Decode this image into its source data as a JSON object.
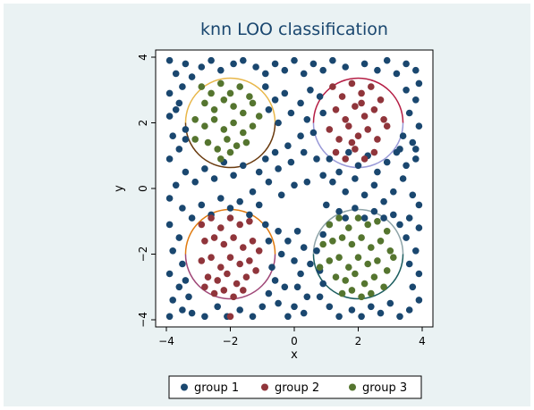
{
  "chart_data": {
    "type": "scatter",
    "title": "knn LOO classification",
    "xlabel": "x",
    "ylabel": "y",
    "xlim": [
      -4,
      4
    ],
    "ylim": [
      -4,
      4
    ],
    "xticks": [
      -4,
      -2,
      0,
      2,
      4
    ],
    "yticks": [
      -4,
      -2,
      0,
      2,
      4
    ],
    "x_tick_labels": [
      "−4",
      "−2",
      "0",
      "2",
      "4"
    ],
    "y_tick_labels": [
      "−4",
      "−2",
      "0",
      "2",
      "4"
    ],
    "grid": false,
    "legend_position": "bottom",
    "series": [
      {
        "name": "group 1",
        "color": "#1a476f",
        "points": [
          [
            -3.9,
            3.9
          ],
          [
            -3.7,
            3.5
          ],
          [
            -3.4,
            3.8
          ],
          [
            -3.2,
            3.4
          ],
          [
            -2.9,
            3.7
          ],
          [
            -2.6,
            3.9
          ],
          [
            -2.3,
            3.6
          ],
          [
            -1.9,
            3.8
          ],
          [
            -1.6,
            3.9
          ],
          [
            -1.2,
            3.7
          ],
          [
            -0.9,
            3.5
          ],
          [
            -0.6,
            3.8
          ],
          [
            -0.3,
            3.6
          ],
          [
            0.0,
            3.9
          ],
          [
            0.3,
            3.5
          ],
          [
            0.6,
            3.8
          ],
          [
            0.9,
            3.6
          ],
          [
            1.2,
            3.9
          ],
          [
            1.6,
            3.7
          ],
          [
            2.2,
            3.8
          ],
          [
            2.6,
            3.6
          ],
          [
            2.9,
            3.9
          ],
          [
            3.2,
            3.5
          ],
          [
            3.5,
            3.8
          ],
          [
            3.8,
            3.6
          ],
          [
            -3.9,
            2.9
          ],
          [
            -3.7,
            2.4
          ],
          [
            -3.5,
            3.1
          ],
          [
            -3.9,
            2.2
          ],
          [
            -3.6,
            2.6
          ],
          [
            -3.8,
            1.6
          ],
          [
            -3.4,
            1.8
          ],
          [
            -3.6,
            1.2
          ],
          [
            -3.9,
            0.9
          ],
          [
            -3.4,
            1.5
          ],
          [
            -0.9,
            3.1
          ],
          [
            -0.6,
            2.7
          ],
          [
            -0.3,
            2.9
          ],
          [
            -0.1,
            2.3
          ],
          [
            0.2,
            2.6
          ],
          [
            0.5,
            3.0
          ],
          [
            0.4,
            2.1
          ],
          [
            -0.5,
            2.0
          ],
          [
            -0.8,
            2.4
          ],
          [
            0.8,
            2.8
          ],
          [
            0.9,
            2.3
          ],
          [
            0.6,
            1.7
          ],
          [
            0.2,
            1.6
          ],
          [
            -0.2,
            1.3
          ],
          [
            -0.6,
            1.1
          ],
          [
            -0.9,
            0.9
          ],
          [
            -0.5,
            0.6
          ],
          [
            -0.1,
            0.8
          ],
          [
            0.3,
            1.1
          ],
          [
            0.7,
            0.9
          ],
          [
            0.9,
            0.4
          ],
          [
            0.4,
            0.2
          ],
          [
            0.0,
            0.1
          ],
          [
            -0.4,
            -0.2
          ],
          [
            -0.8,
            0.2
          ],
          [
            -1.1,
            0.5
          ],
          [
            -1.3,
            -0.1
          ],
          [
            -1.6,
            0.7
          ],
          [
            -1.9,
            0.4
          ],
          [
            -2.2,
            0.8
          ],
          [
            -2.5,
            0.3
          ],
          [
            -2.8,
            0.6
          ],
          [
            -3.1,
            0.2
          ],
          [
            -3.4,
            0.5
          ],
          [
            -3.7,
            0.1
          ],
          [
            -3.9,
            -0.3
          ],
          [
            -3.5,
            -0.6
          ],
          [
            -3.2,
            -0.9
          ],
          [
            -2.9,
            -0.5
          ],
          [
            -2.6,
            -0.8
          ],
          [
            -2.3,
            -0.3
          ],
          [
            -2.0,
            -0.6
          ],
          [
            -1.7,
            -0.4
          ],
          [
            -1.4,
            -0.8
          ],
          [
            -1.1,
            -0.5
          ],
          [
            1.1,
            0.9
          ],
          [
            1.4,
            0.5
          ],
          [
            1.7,
            1.1
          ],
          [
            2.0,
            0.7
          ],
          [
            2.3,
            1.0
          ],
          [
            2.6,
            0.5
          ],
          [
            2.9,
            0.8
          ],
          [
            3.2,
            1.1
          ],
          [
            3.5,
            0.7
          ],
          [
            3.8,
            0.9
          ],
          [
            1.2,
            0.2
          ],
          [
            1.6,
            -0.1
          ],
          [
            1.9,
            0.3
          ],
          [
            2.2,
            -0.2
          ],
          [
            2.5,
            0.1
          ],
          [
            2.8,
            -0.4
          ],
          [
            3.1,
            -0.1
          ],
          [
            3.4,
            0.3
          ],
          [
            3.7,
            -0.2
          ],
          [
            3.9,
            -0.5
          ],
          [
            1.0,
            -0.5
          ],
          [
            1.4,
            -0.7
          ],
          [
            3.6,
            2.3
          ],
          [
            3.9,
            1.9
          ],
          [
            3.7,
            1.4
          ],
          [
            3.4,
            1.6
          ],
          [
            3.8,
            2.7
          ],
          [
            3.5,
            3.0
          ],
          [
            3.9,
            3.2
          ],
          [
            3.3,
            1.2
          ],
          [
            3.8,
            1.2
          ],
          [
            -3.9,
            -1.1
          ],
          [
            -3.6,
            -1.5
          ],
          [
            -3.8,
            -1.9
          ],
          [
            -3.5,
            -2.3
          ],
          [
            -3.9,
            -2.6
          ],
          [
            -3.6,
            -3.0
          ],
          [
            -3.8,
            -3.4
          ],
          [
            -3.5,
            -3.7
          ],
          [
            -3.9,
            -3.9
          ],
          [
            -3.3,
            -3.3
          ],
          [
            -3.2,
            -3.8
          ],
          [
            -3.4,
            -2.8
          ],
          [
            -2.8,
            -3.9
          ],
          [
            -2.4,
            -3.6
          ],
          [
            -2.1,
            -3.9
          ],
          [
            -1.7,
            -3.7
          ],
          [
            -1.3,
            -3.9
          ],
          [
            -1.0,
            -3.6
          ],
          [
            -0.8,
            -3.2
          ],
          [
            -0.5,
            -3.5
          ],
          [
            -0.6,
            -2.8
          ],
          [
            -0.3,
            -3.0
          ],
          [
            -0.7,
            -2.4
          ],
          [
            -0.4,
            -2.0
          ],
          [
            -0.8,
            -1.6
          ],
          [
            -0.5,
            -1.3
          ],
          [
            -0.9,
            -1.1
          ],
          [
            -0.2,
            -1.6
          ],
          [
            0.1,
            -1.3
          ],
          [
            0.3,
            -1.8
          ],
          [
            0.0,
            -2.2
          ],
          [
            0.2,
            -2.6
          ],
          [
            0.5,
            -2.3
          ],
          [
            0.1,
            -3.0
          ],
          [
            0.4,
            -3.3
          ],
          [
            0.0,
            -3.6
          ],
          [
            0.3,
            -3.8
          ],
          [
            -0.2,
            -3.9
          ],
          [
            0.8,
            -3.3
          ],
          [
            1.1,
            -3.6
          ],
          [
            1.4,
            -3.9
          ],
          [
            1.8,
            -3.7
          ],
          [
            2.1,
            -3.9
          ],
          [
            2.4,
            -3.6
          ],
          [
            2.7,
            -3.8
          ],
          [
            3.0,
            -3.5
          ],
          [
            3.3,
            -3.9
          ],
          [
            3.6,
            -3.7
          ],
          [
            3.9,
            -3.4
          ],
          [
            3.7,
            -3.0
          ],
          [
            3.9,
            -2.6
          ],
          [
            3.6,
            -2.3
          ],
          [
            3.8,
            -1.9
          ],
          [
            3.5,
            -1.5
          ],
          [
            3.9,
            -1.2
          ],
          [
            3.6,
            -0.9
          ],
          [
            3.3,
            -1.1
          ],
          [
            3.1,
            -0.8
          ],
          [
            2.8,
            -0.9
          ],
          [
            2.5,
            -0.7
          ],
          [
            2.2,
            -0.9
          ],
          [
            1.9,
            -0.6
          ],
          [
            1.6,
            -0.9
          ],
          [
            1.1,
            -1.1
          ],
          [
            0.9,
            -1.4
          ],
          [
            0.7,
            -1.9
          ],
          [
            0.8,
            -2.5
          ],
          [
            0.9,
            -2.9
          ]
        ]
      },
      {
        "name": "group 2",
        "color": "#90353b",
        "points": [
          [
            1.2,
            3.1
          ],
          [
            1.5,
            2.8
          ],
          [
            1.8,
            3.2
          ],
          [
            2.1,
            2.9
          ],
          [
            2.4,
            3.1
          ],
          [
            2.7,
            2.7
          ],
          [
            1.3,
            2.4
          ],
          [
            1.6,
            2.1
          ],
          [
            1.9,
            2.5
          ],
          [
            2.2,
            2.2
          ],
          [
            2.5,
            2.4
          ],
          [
            2.8,
            2.1
          ],
          [
            1.1,
            1.8
          ],
          [
            1.4,
            1.5
          ],
          [
            1.7,
            1.9
          ],
          [
            2.0,
            1.6
          ],
          [
            2.3,
            1.8
          ],
          [
            2.6,
            1.5
          ],
          [
            2.9,
            1.9
          ],
          [
            1.3,
            1.1
          ],
          [
            1.6,
            0.9
          ],
          [
            1.9,
            1.2
          ],
          [
            2.2,
            0.9
          ],
          [
            2.5,
            1.1
          ],
          [
            2.1,
            2.6
          ],
          [
            1.8,
            1.4
          ],
          [
            -2.9,
            -1.1
          ],
          [
            -2.6,
            -0.9
          ],
          [
            -2.3,
            -1.2
          ],
          [
            -2.0,
            -0.9
          ],
          [
            -1.7,
            -1.1
          ],
          [
            -1.4,
            -1.0
          ],
          [
            -2.8,
            -1.6
          ],
          [
            -2.5,
            -1.5
          ],
          [
            -2.2,
            -1.7
          ],
          [
            -1.9,
            -1.5
          ],
          [
            -1.6,
            -1.8
          ],
          [
            -1.3,
            -1.6
          ],
          [
            -1.1,
            -1.9
          ],
          [
            -2.9,
            -2.2
          ],
          [
            -2.6,
            -2.1
          ],
          [
            -2.3,
            -2.4
          ],
          [
            -2.0,
            -2.1
          ],
          [
            -1.7,
            -2.3
          ],
          [
            -1.4,
            -2.2
          ],
          [
            -1.2,
            -2.5
          ],
          [
            -2.7,
            -2.7
          ],
          [
            -2.4,
            -2.8
          ],
          [
            -2.1,
            -2.6
          ],
          [
            -1.8,
            -2.9
          ],
          [
            -1.5,
            -2.7
          ],
          [
            -2.5,
            -3.2
          ],
          [
            -2.2,
            -3.1
          ],
          [
            -1.9,
            -3.3
          ],
          [
            -1.6,
            -3.1
          ],
          [
            -2.8,
            -3.0
          ],
          [
            -2.0,
            -3.9
          ]
        ]
      },
      {
        "name": "group 3",
        "color": "#55752f",
        "points": [
          [
            -2.9,
            3.1
          ],
          [
            -2.6,
            2.9
          ],
          [
            -2.3,
            3.2
          ],
          [
            -2.0,
            2.9
          ],
          [
            -1.7,
            3.1
          ],
          [
            -1.4,
            2.8
          ],
          [
            -2.8,
            2.6
          ],
          [
            -2.5,
            2.4
          ],
          [
            -2.2,
            2.7
          ],
          [
            -1.9,
            2.5
          ],
          [
            -1.6,
            2.3
          ],
          [
            -1.3,
            2.6
          ],
          [
            -1.1,
            2.2
          ],
          [
            -3.1,
            2.1
          ],
          [
            -2.8,
            1.9
          ],
          [
            -2.5,
            2.1
          ],
          [
            -2.2,
            1.8
          ],
          [
            -1.9,
            2.0
          ],
          [
            -1.6,
            1.7
          ],
          [
            -1.3,
            1.9
          ],
          [
            -2.7,
            1.4
          ],
          [
            -2.4,
            1.2
          ],
          [
            -2.1,
            1.5
          ],
          [
            -1.8,
            1.3
          ],
          [
            -1.5,
            1.4
          ],
          [
            -2.3,
            0.9
          ],
          [
            -2.0,
            1.1
          ],
          [
            -3.1,
            1.5
          ],
          [
            1.1,
            -1.1
          ],
          [
            1.4,
            -0.9
          ],
          [
            1.7,
            -1.2
          ],
          [
            2.0,
            -0.9
          ],
          [
            2.3,
            -1.1
          ],
          [
            2.6,
            -1.0
          ],
          [
            2.9,
            -1.3
          ],
          [
            1.2,
            -1.6
          ],
          [
            1.5,
            -1.5
          ],
          [
            1.8,
            -1.7
          ],
          [
            2.1,
            -1.5
          ],
          [
            2.4,
            -1.8
          ],
          [
            2.7,
            -1.6
          ],
          [
            3.0,
            -1.9
          ],
          [
            1.1,
            -2.2
          ],
          [
            1.4,
            -2.1
          ],
          [
            1.7,
            -2.4
          ],
          [
            2.0,
            -2.1
          ],
          [
            2.3,
            -2.3
          ],
          [
            2.6,
            -2.2
          ],
          [
            2.9,
            -2.5
          ],
          [
            1.3,
            -2.7
          ],
          [
            1.6,
            -2.8
          ],
          [
            1.9,
            -2.6
          ],
          [
            2.2,
            -2.9
          ],
          [
            2.5,
            -2.7
          ],
          [
            2.8,
            -3.0
          ],
          [
            1.5,
            -3.2
          ],
          [
            1.8,
            -3.1
          ],
          [
            2.1,
            -3.3
          ],
          [
            2.4,
            -3.2
          ],
          [
            0.9,
            -1.7
          ],
          [
            0.8,
            -2.4
          ],
          [
            3.1,
            -2.1
          ]
        ]
      }
    ],
    "circles": [
      {
        "cx": -2,
        "cy": 2,
        "r": 1.4,
        "color_a": "#e8b74a",
        "color_b": "#6a3b0f"
      },
      {
        "cx": 2,
        "cy": 2,
        "r": 1.4,
        "color_a": "#b51e45",
        "color_b": "#9a9ad8"
      },
      {
        "cx": -2,
        "cy": -2,
        "r": 1.4,
        "color_a": "#e07b10",
        "color_b": "#a04878"
      },
      {
        "cx": 2,
        "cy": -2,
        "r": 1.4,
        "color_a": "#8ea4a8",
        "color_b": "#1c5e60"
      }
    ]
  }
}
